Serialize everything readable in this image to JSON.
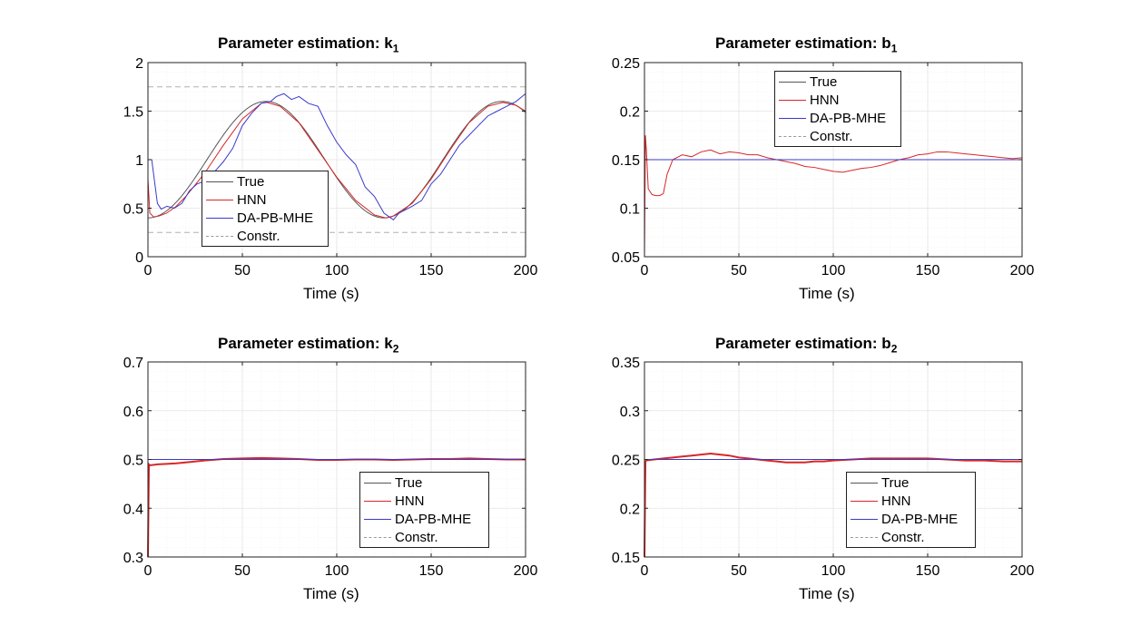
{
  "chart_data": [
    {
      "id": "k1",
      "type": "line",
      "title_main": "Parameter estimation: ",
      "title_var": "k",
      "title_sub": "1",
      "xlabel": "Time (s)",
      "ylabel": "",
      "xlim": [
        0,
        200
      ],
      "ylim": [
        0,
        2
      ],
      "xticks": [
        0,
        50,
        100,
        150,
        200
      ],
      "yticks": [
        0,
        0.5,
        1,
        1.5,
        2
      ],
      "yticklabels": [
        "0",
        "0.5",
        "1",
        "1.5",
        "2"
      ],
      "grid": true,
      "legend_position": "lower-left",
      "legend": [
        "True",
        "HNN",
        "DA-PB-MHE",
        "Constr."
      ],
      "series": [
        {
          "name": "True",
          "kind": "sine",
          "mean": 1.0,
          "amp": 0.6,
          "period": 125,
          "phase_t": 0,
          "start": 0.4
        },
        {
          "name": "HNN",
          "x": [
            0,
            1,
            3,
            6,
            10,
            15,
            20,
            30,
            40,
            50,
            60,
            63,
            70,
            80,
            90,
            100,
            110,
            120,
            126,
            130,
            140,
            150,
            160,
            170,
            180,
            188,
            195,
            200
          ],
          "y": [
            0.8,
            0.45,
            0.41,
            0.42,
            0.45,
            0.52,
            0.62,
            0.86,
            1.15,
            1.42,
            1.58,
            1.59,
            1.55,
            1.38,
            1.1,
            0.82,
            0.58,
            0.43,
            0.4,
            0.42,
            0.55,
            0.8,
            1.1,
            1.38,
            1.55,
            1.59,
            1.56,
            1.5
          ]
        },
        {
          "name": "DA-PB-MHE",
          "x": [
            0,
            2,
            3,
            5,
            7,
            10,
            14,
            18,
            22,
            26,
            30,
            35,
            40,
            45,
            50,
            55,
            60,
            65,
            68,
            72,
            76,
            80,
            85,
            90,
            95,
            100,
            105,
            110,
            115,
            120,
            125,
            130,
            133,
            136,
            140,
            145,
            150,
            155,
            160,
            165,
            170,
            175,
            180,
            185,
            190,
            195,
            200
          ],
          "y": [
            1.0,
            1.0,
            0.85,
            0.55,
            0.49,
            0.52,
            0.5,
            0.55,
            0.68,
            0.75,
            0.78,
            0.87,
            0.98,
            1.12,
            1.35,
            1.48,
            1.58,
            1.6,
            1.65,
            1.68,
            1.62,
            1.65,
            1.58,
            1.55,
            1.35,
            1.18,
            1.05,
            0.95,
            0.72,
            0.62,
            0.45,
            0.38,
            0.45,
            0.48,
            0.52,
            0.58,
            0.75,
            0.85,
            1.0,
            1.15,
            1.25,
            1.35,
            1.45,
            1.5,
            1.55,
            1.6,
            1.68
          ]
        },
        {
          "name": "Constr.",
          "kind": "hline",
          "values": [
            1.75,
            0.25
          ]
        }
      ]
    },
    {
      "id": "b1",
      "type": "line",
      "title_main": "Parameter estimation: ",
      "title_var": "b",
      "title_sub": "1",
      "xlabel": "Time (s)",
      "ylabel": "",
      "xlim": [
        0,
        200
      ],
      "ylim": [
        0.05,
        0.25
      ],
      "xticks": [
        0,
        50,
        100,
        150,
        200
      ],
      "yticks": [
        0.05,
        0.1,
        0.15,
        0.2,
        0.25
      ],
      "yticklabels": [
        "0.05",
        "0.1",
        "0.15",
        "0.2",
        "0.25"
      ],
      "grid": true,
      "legend_position": "top-center",
      "legend": [
        "True",
        "HNN",
        "DA-PB-MHE",
        "Constr."
      ],
      "series": [
        {
          "name": "True",
          "kind": "hline",
          "values": [
            0.15
          ]
        },
        {
          "name": "HNN",
          "x": [
            0,
            0.5,
            1,
            2,
            4,
            6,
            8,
            10,
            12,
            15,
            20,
            25,
            30,
            35,
            40,
            45,
            50,
            55,
            60,
            65,
            70,
            75,
            80,
            85,
            90,
            95,
            100,
            105,
            110,
            115,
            120,
            125,
            130,
            135,
            140,
            145,
            150,
            155,
            160,
            165,
            170,
            175,
            180,
            185,
            190,
            195,
            200
          ],
          "y": [
            0.05,
            0.175,
            0.16,
            0.12,
            0.114,
            0.113,
            0.113,
            0.115,
            0.135,
            0.15,
            0.155,
            0.153,
            0.158,
            0.16,
            0.156,
            0.158,
            0.157,
            0.155,
            0.155,
            0.152,
            0.15,
            0.148,
            0.146,
            0.143,
            0.142,
            0.14,
            0.138,
            0.137,
            0.139,
            0.141,
            0.142,
            0.144,
            0.147,
            0.15,
            0.152,
            0.155,
            0.156,
            0.158,
            0.158,
            0.157,
            0.156,
            0.155,
            0.154,
            0.153,
            0.152,
            0.151,
            0.152
          ]
        },
        {
          "name": "DA-PB-MHE",
          "kind": "hline",
          "values": [
            0.15
          ]
        }
      ]
    },
    {
      "id": "k2",
      "type": "line",
      "title_main": "Parameter estimation: ",
      "title_var": "k",
      "title_sub": "2",
      "xlabel": "Time (s)",
      "ylabel": "",
      "xlim": [
        0,
        200
      ],
      "ylim": [
        0.3,
        0.7
      ],
      "xticks": [
        0,
        50,
        100,
        150,
        200
      ],
      "yticks": [
        0.3,
        0.4,
        0.5,
        0.6,
        0.7
      ],
      "yticklabels": [
        "0.3",
        "0.4",
        "0.5",
        "0.6",
        "0.7"
      ],
      "grid": true,
      "legend_position": "lower-right",
      "legend": [
        "True",
        "HNN",
        "DA-PB-MHE",
        "Constr."
      ],
      "series": [
        {
          "name": "True",
          "kind": "hline",
          "values": [
            0.5
          ]
        },
        {
          "name": "HNN",
          "x": [
            0,
            0.5,
            1,
            5,
            10,
            15,
            20,
            30,
            40,
            50,
            60,
            70,
            80,
            90,
            100,
            110,
            120,
            130,
            140,
            150,
            160,
            170,
            180,
            190,
            200
          ],
          "y": [
            0.3,
            0.49,
            0.488,
            0.49,
            0.491,
            0.492,
            0.494,
            0.498,
            0.501,
            0.502,
            0.503,
            0.502,
            0.501,
            0.499,
            0.499,
            0.5,
            0.5,
            0.499,
            0.5,
            0.501,
            0.501,
            0.502,
            0.501,
            0.5,
            0.5
          ]
        },
        {
          "name": "DA-PB-MHE",
          "kind": "hline",
          "values": [
            0.5
          ]
        }
      ]
    },
    {
      "id": "b2",
      "type": "line",
      "title_main": "Parameter estimation: ",
      "title_var": "b",
      "title_sub": "2",
      "xlabel": "Time (s)",
      "ylabel": "",
      "xlim": [
        0,
        200
      ],
      "ylim": [
        0.15,
        0.35
      ],
      "xticks": [
        0,
        50,
        100,
        150,
        200
      ],
      "yticks": [
        0.15,
        0.2,
        0.25,
        0.3,
        0.35
      ],
      "yticklabels": [
        "0.15",
        "0.2",
        "0.25",
        "0.3",
        "0.35"
      ],
      "grid": true,
      "legend_position": "lower-right",
      "legend": [
        "True",
        "HNN",
        "DA-PB-MHE",
        "Constr."
      ],
      "series": [
        {
          "name": "True",
          "kind": "hline",
          "values": [
            0.25
          ]
        },
        {
          "name": "HNN",
          "x": [
            0,
            0.5,
            1,
            5,
            10,
            15,
            20,
            25,
            30,
            35,
            40,
            45,
            50,
            55,
            60,
            65,
            70,
            75,
            80,
            85,
            90,
            95,
            100,
            110,
            120,
            130,
            140,
            150,
            160,
            170,
            180,
            190,
            200
          ],
          "y": [
            0.15,
            0.248,
            0.249,
            0.25,
            0.251,
            0.252,
            0.253,
            0.254,
            0.255,
            0.256,
            0.255,
            0.254,
            0.252,
            0.251,
            0.25,
            0.249,
            0.248,
            0.247,
            0.247,
            0.247,
            0.248,
            0.248,
            0.249,
            0.25,
            0.251,
            0.251,
            0.251,
            0.251,
            0.25,
            0.249,
            0.249,
            0.248,
            0.248
          ]
        },
        {
          "name": "DA-PB-MHE",
          "kind": "hline",
          "values": [
            0.25
          ]
        }
      ]
    }
  ],
  "colors": {
    "true": "#555555",
    "hnn": "#d62728",
    "mhe": "#3a3ac8",
    "constr": "#b0b0b0",
    "grid": "#e4e4e4",
    "axis": "#222222"
  }
}
